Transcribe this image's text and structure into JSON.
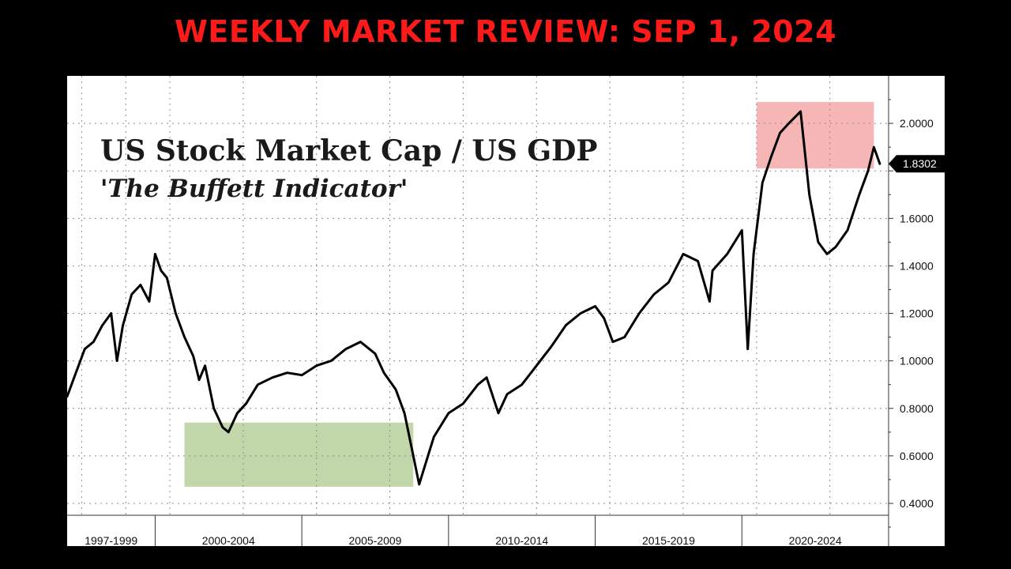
{
  "banner": {
    "title": "WEEKLY MARKET REVIEW: SEP 1, 2024",
    "color": "#ff1a1a"
  },
  "chart_data": {
    "type": "line",
    "title": "US Stock Market Cap / US GDP",
    "subtitle": "'The Buffett Indicator'",
    "xlabel": "",
    "ylabel": "",
    "xlim": [
      1997,
      2025
    ],
    "ylim": [
      0.35,
      2.2
    ],
    "grid": true,
    "line_color": "#000000",
    "y_ticks": [
      0.4,
      0.6,
      0.8,
      1.0,
      1.2,
      1.4,
      1.6,
      1.8,
      2.0
    ],
    "y_tick_labels": [
      "0.4000",
      "0.6000",
      "0.8000",
      "1.0000",
      "1.2000",
      "1.4000",
      "1.6000",
      "",
      "2.0000"
    ],
    "x_tick_labels": [
      "1997-1999",
      "2000-2004",
      "2005-2009",
      "2010-2014",
      "2015-2019",
      "2020-2024"
    ],
    "x_group_bounds": [
      [
        1997,
        2000
      ],
      [
        2000,
        2005
      ],
      [
        2005,
        2010
      ],
      [
        2010,
        2015
      ],
      [
        2015,
        2020
      ],
      [
        2020,
        2025
      ]
    ],
    "last_value": 1.83,
    "last_value_label": "1.8302",
    "highlight_regions": [
      {
        "name": "undervalued",
        "x": [
          2001.0,
          2008.8
        ],
        "y": [
          0.47,
          0.74
        ],
        "color": "#b7d09a"
      },
      {
        "name": "overvalued",
        "x": [
          2020.5,
          2024.5
        ],
        "y": [
          1.81,
          2.09
        ],
        "color": "#f4a9a9"
      }
    ],
    "series": [
      {
        "x": [
          1997.0,
          1997.3,
          1997.6,
          1997.9,
          1998.2,
          1998.5,
          1998.7,
          1998.9,
          1999.2,
          1999.5,
          1999.8,
          2000.0,
          2000.2,
          2000.4,
          2000.7,
          2001.0,
          2001.3,
          2001.5,
          2001.7,
          2002.0,
          2002.3,
          2002.5,
          2002.8,
          2003.1,
          2003.5,
          2004.0,
          2004.5,
          2005.0,
          2005.5,
          2006.0,
          2006.5,
          2007.0,
          2007.5,
          2007.8,
          2008.2,
          2008.5,
          2008.8,
          2009.0,
          2009.2,
          2009.5,
          2010.0,
          2010.5,
          2011.0,
          2011.3,
          2011.7,
          2012.0,
          2012.5,
          2013.0,
          2013.5,
          2014.0,
          2014.5,
          2015.0,
          2015.3,
          2015.6,
          2016.0,
          2016.5,
          2017.0,
          2017.5,
          2018.0,
          2018.5,
          2018.9,
          2019.0,
          2019.5,
          2020.0,
          2020.2,
          2020.4,
          2020.7,
          2021.0,
          2021.3,
          2021.6,
          2022.0,
          2022.3,
          2022.6,
          2022.9,
          2023.2,
          2023.6,
          2024.0,
          2024.3,
          2024.5,
          2024.7
        ],
        "y": [
          0.85,
          0.95,
          1.05,
          1.08,
          1.15,
          1.2,
          1.0,
          1.15,
          1.28,
          1.32,
          1.25,
          1.45,
          1.38,
          1.35,
          1.2,
          1.1,
          1.02,
          0.92,
          0.98,
          0.8,
          0.72,
          0.7,
          0.78,
          0.82,
          0.9,
          0.93,
          0.95,
          0.94,
          0.98,
          1.0,
          1.05,
          1.08,
          1.03,
          0.95,
          0.88,
          0.78,
          0.6,
          0.48,
          0.56,
          0.68,
          0.78,
          0.82,
          0.9,
          0.93,
          0.78,
          0.86,
          0.9,
          0.98,
          1.06,
          1.15,
          1.2,
          1.23,
          1.18,
          1.08,
          1.1,
          1.2,
          1.28,
          1.33,
          1.45,
          1.42,
          1.25,
          1.38,
          1.45,
          1.55,
          1.05,
          1.45,
          1.75,
          1.86,
          1.96,
          2.0,
          2.05,
          1.7,
          1.5,
          1.45,
          1.48,
          1.55,
          1.7,
          1.8,
          1.9,
          1.83
        ]
      }
    ]
  }
}
